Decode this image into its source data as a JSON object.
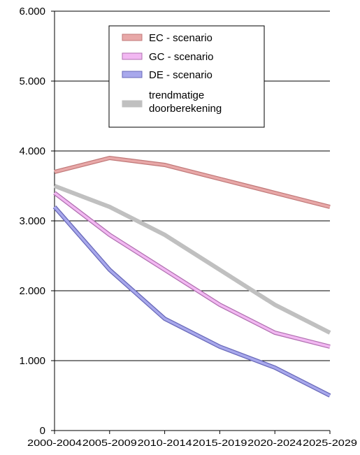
{
  "chart_data": {
    "type": "line",
    "categories": [
      "2000-2004",
      "2005-2009",
      "2010-2014",
      "2015-2019",
      "2020-2024",
      "2025-2029"
    ],
    "ylim": [
      0,
      6000
    ],
    "yticks": [
      "0",
      "1.000",
      "2.000",
      "3.000",
      "4.000",
      "5.000",
      "6.000"
    ],
    "grid": true,
    "legend_position": "top-center",
    "series": [
      {
        "name": "EC - scenario",
        "color": "#e8a8a8",
        "edge": "#c07878",
        "values": [
          3700,
          3900,
          3800,
          3600,
          3400,
          3200
        ]
      },
      {
        "name": "GC - scenario",
        "color": "#f2b8f2",
        "edge": "#b070b0",
        "values": [
          3400,
          2800,
          2300,
          1800,
          1400,
          1200
        ]
      },
      {
        "name": "DE - scenario",
        "color": "#a8a8ec",
        "edge": "#6868b8",
        "values": [
          3200,
          2300,
          1600,
          1200,
          900,
          500
        ]
      },
      {
        "name_lines": [
          "trendmatige",
          "doorberekening"
        ],
        "color": "#c0c0c0",
        "edge": "#c0c0c0",
        "values": [
          3500,
          3200,
          2800,
          2300,
          1800,
          1400
        ]
      }
    ]
  }
}
